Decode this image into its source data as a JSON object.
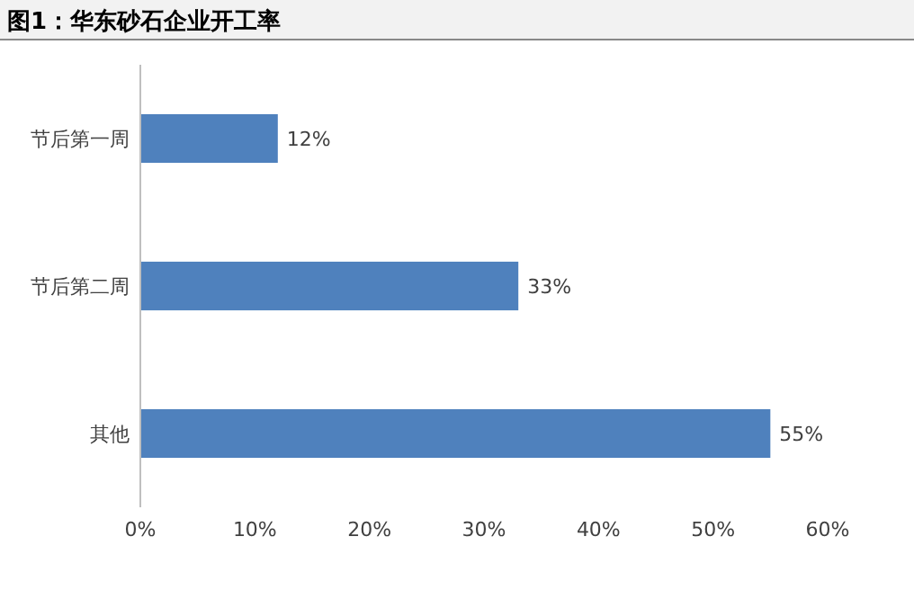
{
  "chart_data": {
    "type": "bar",
    "orientation": "horizontal",
    "title": "图1：华东砂石企业开工率",
    "categories": [
      "节后第一周",
      "节后第二周",
      "其他"
    ],
    "values": [
      12,
      33,
      55
    ],
    "value_labels": [
      "12%",
      "33%",
      "55%"
    ],
    "color": "#4f81bd",
    "xlim": [
      0,
      60
    ],
    "xticks": [
      {
        "value": 0,
        "label": "0%"
      },
      {
        "value": 10,
        "label": "10%"
      },
      {
        "value": 20,
        "label": "20%"
      },
      {
        "value": 30,
        "label": "30%"
      },
      {
        "value": 40,
        "label": "40%"
      },
      {
        "value": 50,
        "label": "50%"
      },
      {
        "value": 60,
        "label": "60%"
      }
    ],
    "grid": false,
    "legend": false
  }
}
